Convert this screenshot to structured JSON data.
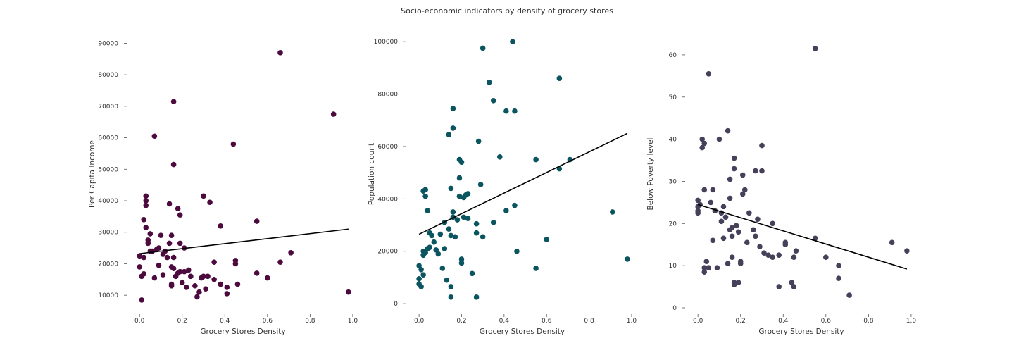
{
  "title": "Socio-economic indicators by density of grocery stores",
  "chart_data": [
    {
      "type": "scatter",
      "xlabel": "Grocery Stores Density",
      "ylabel": "Per Capita Income",
      "xlim": [
        -0.06,
        1.03
      ],
      "ylim": [
        4000,
        93000
      ],
      "xticks": [
        0.0,
        0.2,
        0.4,
        0.6,
        0.8,
        1.0
      ],
      "xtick_labels": [
        "0.0",
        "0.2",
        "0.4",
        "0.6",
        "0.8",
        "1.0"
      ],
      "yticks": [
        10000,
        20000,
        30000,
        40000,
        50000,
        60000,
        70000,
        80000,
        90000
      ],
      "ytick_labels": [
        "10000",
        "20000",
        "30000",
        "40000",
        "50000",
        "60000",
        "70000",
        "80000",
        "90000"
      ],
      "color": "#4d0a3f",
      "grid": false,
      "trendline": {
        "x": [
          0.0,
          0.98
        ],
        "y": [
          23200,
          31000
        ]
      },
      "points": [
        [
          0.0,
          22500
        ],
        [
          0.01,
          16000
        ],
        [
          0.0,
          19000
        ],
        [
          0.01,
          8500
        ],
        [
          0.02,
          22000
        ],
        [
          0.02,
          34000
        ],
        [
          0.02,
          16800
        ],
        [
          0.03,
          38500
        ],
        [
          0.03,
          40000
        ],
        [
          0.03,
          41500
        ],
        [
          0.03,
          31500
        ],
        [
          0.04,
          26500
        ],
        [
          0.04,
          27500
        ],
        [
          0.05,
          24000
        ],
        [
          0.05,
          29500
        ],
        [
          0.06,
          24000
        ],
        [
          0.07,
          60500
        ],
        [
          0.07,
          15500
        ],
        [
          0.08,
          24500
        ],
        [
          0.09,
          25000
        ],
        [
          0.09,
          19500
        ],
        [
          0.1,
          29000
        ],
        [
          0.11,
          23000
        ],
        [
          0.11,
          16500
        ],
        [
          0.12,
          24000
        ],
        [
          0.13,
          22000
        ],
        [
          0.14,
          26500
        ],
        [
          0.14,
          39000
        ],
        [
          0.15,
          29000
        ],
        [
          0.15,
          19000
        ],
        [
          0.15,
          13500
        ],
        [
          0.15,
          13000
        ],
        [
          0.16,
          51500
        ],
        [
          0.16,
          71500
        ],
        [
          0.16,
          22000
        ],
        [
          0.16,
          18500
        ],
        [
          0.17,
          16000
        ],
        [
          0.18,
          17000
        ],
        [
          0.18,
          37500
        ],
        [
          0.19,
          35500
        ],
        [
          0.19,
          17500
        ],
        [
          0.19,
          26500
        ],
        [
          0.2,
          14000
        ],
        [
          0.21,
          17500
        ],
        [
          0.21,
          25000
        ],
        [
          0.22,
          12500
        ],
        [
          0.23,
          18000
        ],
        [
          0.24,
          16000
        ],
        [
          0.26,
          13000
        ],
        [
          0.27,
          9500
        ],
        [
          0.28,
          11000
        ],
        [
          0.29,
          15500
        ],
        [
          0.3,
          41500
        ],
        [
          0.3,
          16000
        ],
        [
          0.31,
          12000
        ],
        [
          0.32,
          16000
        ],
        [
          0.33,
          39500
        ],
        [
          0.35,
          15000
        ],
        [
          0.35,
          20500
        ],
        [
          0.38,
          32000
        ],
        [
          0.38,
          13500
        ],
        [
          0.41,
          12500
        ],
        [
          0.41,
          10500
        ],
        [
          0.44,
          58000
        ],
        [
          0.45,
          21000
        ],
        [
          0.45,
          20000
        ],
        [
          0.46,
          13500
        ],
        [
          0.55,
          33500
        ],
        [
          0.55,
          17000
        ],
        [
          0.6,
          15500
        ],
        [
          0.66,
          87000
        ],
        [
          0.66,
          20500
        ],
        [
          0.71,
          23500
        ],
        [
          0.91,
          67500
        ],
        [
          0.98,
          11000
        ]
      ]
    },
    {
      "type": "scatter",
      "xlabel": "Grocery Stores Density",
      "ylabel": "Population count",
      "xlim": [
        -0.06,
        1.03
      ],
      "ylim": [
        -4000,
        103000
      ],
      "xticks": [
        0.0,
        0.2,
        0.4,
        0.6,
        0.8,
        1.0
      ],
      "xtick_labels": [
        "0.0",
        "0.2",
        "0.4",
        "0.6",
        "0.8",
        "1.0"
      ],
      "yticks": [
        0,
        20000,
        40000,
        60000,
        80000,
        100000
      ],
      "ytick_labels": [
        "0",
        "20000",
        "40000",
        "60000",
        "80000",
        "100000"
      ],
      "color": "#0a5560",
      "grid": false,
      "trendline": {
        "x": [
          0.0,
          0.98
        ],
        "y": [
          26500,
          65000
        ]
      },
      "points": [
        [
          0.0,
          9500
        ],
        [
          0.0,
          7500
        ],
        [
          0.0,
          14500
        ],
        [
          0.01,
          6500
        ],
        [
          0.01,
          13000
        ],
        [
          0.02,
          18500
        ],
        [
          0.02,
          11000
        ],
        [
          0.02,
          20000
        ],
        [
          0.02,
          43000
        ],
        [
          0.03,
          41000
        ],
        [
          0.03,
          43500
        ],
        [
          0.03,
          19500
        ],
        [
          0.04,
          21000
        ],
        [
          0.04,
          35500
        ],
        [
          0.05,
          27000
        ],
        [
          0.05,
          21500
        ],
        [
          0.06,
          26000
        ],
        [
          0.07,
          23500
        ],
        [
          0.08,
          20500
        ],
        [
          0.09,
          19000
        ],
        [
          0.1,
          26500
        ],
        [
          0.11,
          13500
        ],
        [
          0.12,
          21000
        ],
        [
          0.12,
          31000
        ],
        [
          0.13,
          9000
        ],
        [
          0.14,
          64500
        ],
        [
          0.14,
          28500
        ],
        [
          0.15,
          26000
        ],
        [
          0.15,
          44000
        ],
        [
          0.15,
          6500
        ],
        [
          0.15,
          2500
        ],
        [
          0.16,
          74500
        ],
        [
          0.16,
          35000
        ],
        [
          0.16,
          33000
        ],
        [
          0.16,
          67000
        ],
        [
          0.17,
          25500
        ],
        [
          0.18,
          32000
        ],
        [
          0.19,
          48000
        ],
        [
          0.19,
          41000
        ],
        [
          0.19,
          55000
        ],
        [
          0.2,
          54000
        ],
        [
          0.2,
          17000
        ],
        [
          0.2,
          15500
        ],
        [
          0.21,
          33000
        ],
        [
          0.21,
          40500
        ],
        [
          0.22,
          41500
        ],
        [
          0.23,
          32500
        ],
        [
          0.23,
          42000
        ],
        [
          0.25,
          11500
        ],
        [
          0.27,
          27000
        ],
        [
          0.27,
          30500
        ],
        [
          0.27,
          2500
        ],
        [
          0.28,
          62000
        ],
        [
          0.29,
          45500
        ],
        [
          0.3,
          25500
        ],
        [
          0.3,
          97500
        ],
        [
          0.33,
          84500
        ],
        [
          0.35,
          77500
        ],
        [
          0.35,
          31000
        ],
        [
          0.38,
          56000
        ],
        [
          0.41,
          73500
        ],
        [
          0.41,
          35500
        ],
        [
          0.44,
          100000
        ],
        [
          0.45,
          73500
        ],
        [
          0.45,
          37500
        ],
        [
          0.46,
          20000
        ],
        [
          0.55,
          55000
        ],
        [
          0.55,
          13500
        ],
        [
          0.6,
          24500
        ],
        [
          0.66,
          86000
        ],
        [
          0.66,
          51500
        ],
        [
          0.71,
          55000
        ],
        [
          0.91,
          35000
        ],
        [
          0.98,
          17000
        ]
      ]
    },
    {
      "type": "scatter",
      "xlabel": "Grocery Stores Density",
      "ylabel": "Below Poverty level",
      "xlim": [
        -0.06,
        1.03
      ],
      "ylim": [
        -1.5,
        65
      ],
      "xticks": [
        0.0,
        0.2,
        0.4,
        0.6,
        0.8,
        1.0
      ],
      "xtick_labels": [
        "0.0",
        "0.2",
        "0.4",
        "0.6",
        "0.8",
        "1.0"
      ],
      "yticks": [
        0,
        10,
        20,
        30,
        40,
        50,
        60
      ],
      "ytick_labels": [
        "0",
        "10",
        "20",
        "30",
        "40",
        "50",
        "60"
      ],
      "color": "#47405a",
      "grid": false,
      "trendline": {
        "x": [
          0.0,
          0.98
        ],
        "y": [
          24.5,
          9.2
        ]
      },
      "points": [
        [
          0.0,
          25.5
        ],
        [
          0.0,
          23.0
        ],
        [
          0.0,
          22.5
        ],
        [
          0.0,
          24.0
        ],
        [
          0.01,
          24.5
        ],
        [
          0.02,
          40.0
        ],
        [
          0.02,
          38.0
        ],
        [
          0.03,
          39.0
        ],
        [
          0.03,
          28.0
        ],
        [
          0.03,
          8.5
        ],
        [
          0.03,
          9.5
        ],
        [
          0.04,
          11.0
        ],
        [
          0.05,
          9.5
        ],
        [
          0.05,
          55.5
        ],
        [
          0.06,
          25.0
        ],
        [
          0.07,
          28.0
        ],
        [
          0.07,
          16.0
        ],
        [
          0.08,
          23.0
        ],
        [
          0.09,
          9.5
        ],
        [
          0.1,
          40.0
        ],
        [
          0.11,
          22.5
        ],
        [
          0.11,
          20.5
        ],
        [
          0.12,
          16.5
        ],
        [
          0.12,
          24.0
        ],
        [
          0.13,
          21.5
        ],
        [
          0.14,
          10.5
        ],
        [
          0.14,
          42.0
        ],
        [
          0.15,
          18.5
        ],
        [
          0.15,
          26.0
        ],
        [
          0.15,
          30.5
        ],
        [
          0.16,
          19.0
        ],
        [
          0.16,
          17.0
        ],
        [
          0.16,
          12.0
        ],
        [
          0.17,
          6.0
        ],
        [
          0.17,
          5.5
        ],
        [
          0.17,
          35.5
        ],
        [
          0.17,
          33.0
        ],
        [
          0.18,
          19.5
        ],
        [
          0.19,
          18.0
        ],
        [
          0.19,
          6.0
        ],
        [
          0.2,
          11.0
        ],
        [
          0.2,
          10.5
        ],
        [
          0.21,
          27.0
        ],
        [
          0.21,
          31.5
        ],
        [
          0.22,
          28.0
        ],
        [
          0.23,
          15.5
        ],
        [
          0.24,
          22.5
        ],
        [
          0.26,
          18.5
        ],
        [
          0.27,
          17.0
        ],
        [
          0.27,
          32.5
        ],
        [
          0.28,
          21.0
        ],
        [
          0.29,
          14.5
        ],
        [
          0.3,
          38.5
        ],
        [
          0.3,
          32.5
        ],
        [
          0.31,
          13.0
        ],
        [
          0.33,
          12.5
        ],
        [
          0.35,
          20.0
        ],
        [
          0.35,
          12.0
        ],
        [
          0.38,
          5.0
        ],
        [
          0.38,
          12.5
        ],
        [
          0.41,
          15.0
        ],
        [
          0.41,
          15.5
        ],
        [
          0.44,
          6.0
        ],
        [
          0.45,
          12.0
        ],
        [
          0.45,
          5.0
        ],
        [
          0.46,
          13.5
        ],
        [
          0.55,
          61.5
        ],
        [
          0.55,
          16.5
        ],
        [
          0.6,
          12.0
        ],
        [
          0.66,
          10.0
        ],
        [
          0.66,
          7.0
        ],
        [
          0.71,
          3.0
        ],
        [
          0.91,
          15.5
        ],
        [
          0.98,
          13.5
        ]
      ]
    }
  ]
}
